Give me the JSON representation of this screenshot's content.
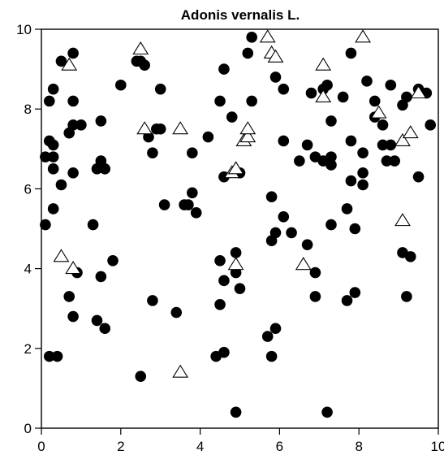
{
  "chart_data": {
    "type": "scatter",
    "title": "Adonis vernalis L.",
    "xlabel": "",
    "ylabel": "",
    "xlim": [
      0,
      10
    ],
    "ylim": [
      0,
      10
    ],
    "x_ticks": [
      0,
      2,
      4,
      6,
      8,
      10
    ],
    "y_ticks": [
      0,
      2,
      4,
      6,
      8,
      10
    ],
    "x_tick_labels": [
      "0",
      "2",
      "4",
      "6",
      "8",
      "10"
    ],
    "y_tick_labels": [
      "0",
      "2",
      "4",
      "6",
      "8",
      "10"
    ],
    "grid": false,
    "series": [
      {
        "marker": "filled-circle",
        "color": "#000000",
        "points": [
          [
            0.1,
            6.8
          ],
          [
            0.1,
            5.1
          ],
          [
            0.2,
            8.2
          ],
          [
            0.2,
            7.2
          ],
          [
            0.2,
            1.8
          ],
          [
            0.3,
            8.5
          ],
          [
            0.3,
            7.1
          ],
          [
            0.3,
            6.8
          ],
          [
            0.3,
            6.5
          ],
          [
            0.3,
            5.5
          ],
          [
            0.4,
            1.8
          ],
          [
            0.5,
            9.2
          ],
          [
            0.5,
            6.1
          ],
          [
            0.7,
            7.4
          ],
          [
            0.7,
            3.3
          ],
          [
            0.8,
            9.4
          ],
          [
            0.8,
            8.2
          ],
          [
            0.8,
            7.6
          ],
          [
            0.8,
            6.4
          ],
          [
            0.8,
            2.8
          ],
          [
            0.9,
            3.9
          ],
          [
            1.0,
            7.6
          ],
          [
            1.3,
            5.1
          ],
          [
            1.4,
            6.5
          ],
          [
            1.4,
            2.7
          ],
          [
            1.5,
            7.7
          ],
          [
            1.5,
            6.7
          ],
          [
            1.5,
            6.6
          ],
          [
            1.5,
            3.8
          ],
          [
            1.6,
            6.5
          ],
          [
            1.6,
            2.5
          ],
          [
            1.8,
            4.2
          ],
          [
            2.0,
            8.6
          ],
          [
            2.4,
            9.2
          ],
          [
            2.5,
            9.2
          ],
          [
            2.5,
            1.3
          ],
          [
            2.6,
            9.1
          ],
          [
            2.7,
            7.3
          ],
          [
            2.8,
            6.9
          ],
          [
            2.8,
            3.2
          ],
          [
            2.9,
            7.5
          ],
          [
            3.0,
            8.5
          ],
          [
            3.0,
            7.5
          ],
          [
            3.1,
            5.6
          ],
          [
            3.4,
            2.9
          ],
          [
            3.6,
            5.6
          ],
          [
            3.7,
            5.6
          ],
          [
            3.8,
            6.9
          ],
          [
            3.8,
            5.9
          ],
          [
            3.9,
            5.4
          ],
          [
            4.2,
            7.3
          ],
          [
            4.4,
            1.8
          ],
          [
            4.5,
            8.2
          ],
          [
            4.5,
            4.2
          ],
          [
            4.5,
            3.1
          ],
          [
            4.6,
            9.0
          ],
          [
            4.6,
            3.7
          ],
          [
            4.6,
            1.9
          ],
          [
            4.6,
            6.3
          ],
          [
            4.8,
            7.8
          ],
          [
            4.9,
            4.4
          ],
          [
            4.9,
            3.9
          ],
          [
            4.9,
            0.4
          ],
          [
            5.0,
            6.4
          ],
          [
            5.0,
            3.5
          ],
          [
            5.2,
            9.4
          ],
          [
            5.3,
            9.8
          ],
          [
            5.3,
            8.2
          ],
          [
            5.7,
            2.3
          ],
          [
            5.8,
            5.8
          ],
          [
            5.8,
            4.7
          ],
          [
            5.8,
            1.8
          ],
          [
            5.9,
            8.8
          ],
          [
            5.9,
            4.9
          ],
          [
            5.9,
            2.5
          ],
          [
            6.1,
            8.5
          ],
          [
            6.1,
            7.2
          ],
          [
            6.1,
            5.3
          ],
          [
            6.3,
            4.9
          ],
          [
            6.5,
            6.7
          ],
          [
            6.7,
            7.1
          ],
          [
            6.7,
            4.6
          ],
          [
            6.8,
            8.4
          ],
          [
            6.9,
            6.8
          ],
          [
            6.9,
            3.9
          ],
          [
            6.9,
            3.3
          ],
          [
            7.1,
            8.5
          ],
          [
            7.1,
            6.7
          ],
          [
            7.2,
            8.6
          ],
          [
            7.2,
            0.4
          ],
          [
            7.3,
            7.7
          ],
          [
            7.3,
            6.8
          ],
          [
            7.3,
            6.6
          ],
          [
            7.3,
            5.1
          ],
          [
            7.6,
            8.3
          ],
          [
            7.7,
            5.5
          ],
          [
            7.7,
            3.2
          ],
          [
            7.8,
            9.4
          ],
          [
            7.8,
            7.2
          ],
          [
            7.8,
            6.2
          ],
          [
            7.9,
            5.0
          ],
          [
            7.9,
            3.4
          ],
          [
            8.1,
            6.9
          ],
          [
            8.1,
            6.4
          ],
          [
            8.1,
            6.1
          ],
          [
            8.2,
            8.7
          ],
          [
            8.4,
            8.2
          ],
          [
            8.4,
            7.8
          ],
          [
            8.6,
            7.6
          ],
          [
            8.6,
            7.1
          ],
          [
            8.7,
            6.7
          ],
          [
            8.8,
            8.6
          ],
          [
            8.8,
            7.1
          ],
          [
            8.9,
            6.7
          ],
          [
            9.1,
            8.1
          ],
          [
            9.1,
            4.4
          ],
          [
            9.2,
            8.3
          ],
          [
            9.2,
            3.3
          ],
          [
            9.3,
            4.3
          ],
          [
            9.5,
            8.5
          ],
          [
            9.5,
            6.3
          ],
          [
            9.7,
            8.4
          ],
          [
            9.8,
            7.6
          ]
        ]
      },
      {
        "marker": "open-triangle",
        "color": "#000000",
        "points": [
          [
            0.5,
            4.3
          ],
          [
            0.7,
            9.1
          ],
          [
            0.8,
            4.0
          ],
          [
            2.5,
            9.5
          ],
          [
            2.6,
            7.5
          ],
          [
            3.5,
            7.5
          ],
          [
            3.5,
            1.4
          ],
          [
            4.8,
            6.4
          ],
          [
            4.9,
            6.5
          ],
          [
            4.9,
            4.1
          ],
          [
            5.1,
            7.2
          ],
          [
            5.2,
            7.3
          ],
          [
            5.2,
            7.5
          ],
          [
            5.7,
            9.8
          ],
          [
            5.8,
            9.4
          ],
          [
            5.9,
            9.3
          ],
          [
            6.6,
            4.1
          ],
          [
            7.1,
            9.1
          ],
          [
            7.1,
            8.3
          ],
          [
            8.1,
            9.8
          ],
          [
            8.5,
            7.9
          ],
          [
            9.1,
            7.2
          ],
          [
            9.1,
            5.2
          ],
          [
            9.3,
            7.4
          ],
          [
            9.5,
            8.4
          ]
        ]
      }
    ]
  }
}
